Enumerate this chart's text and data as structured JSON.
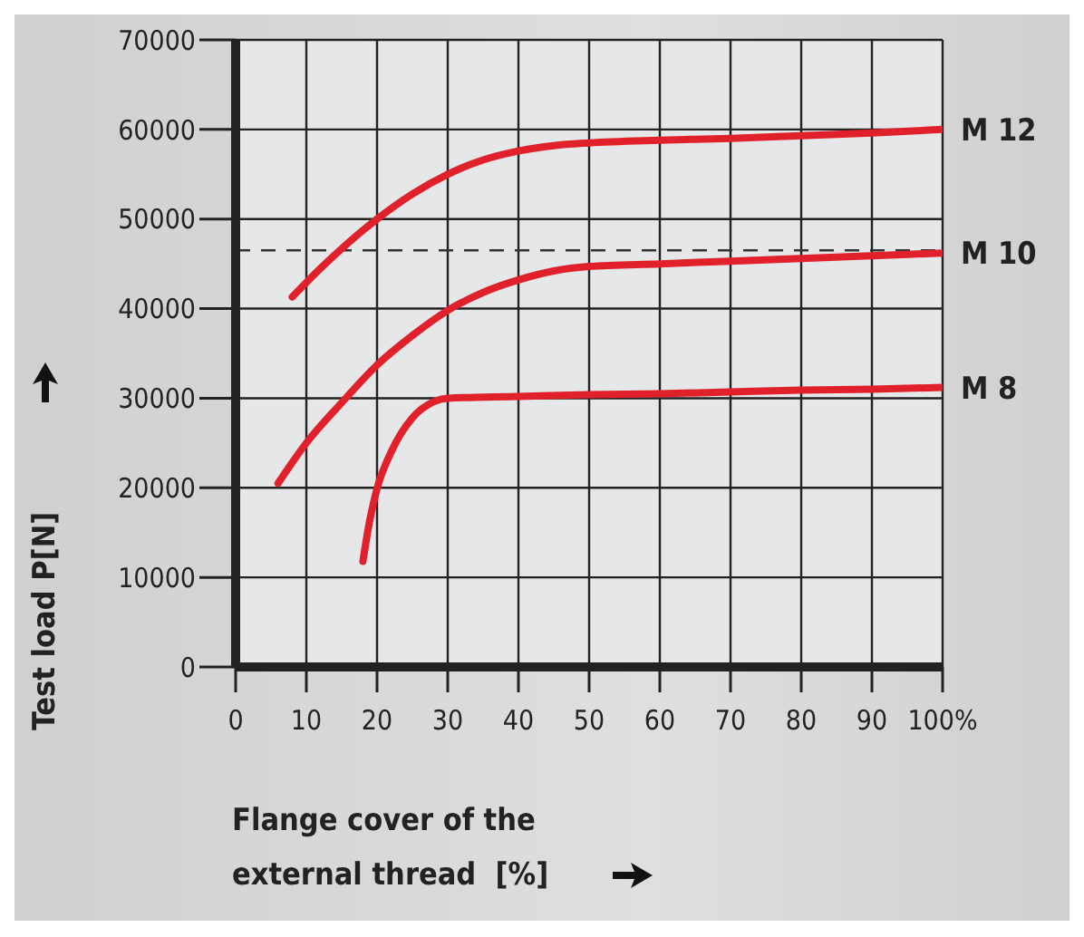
{
  "chart_data": {
    "type": "line",
    "xlabel": "Flange cover of the\nexternal thread  [%]",
    "ylabel": "Test load   P[N]",
    "xlim": [
      0,
      100
    ],
    "xticks": [
      0,
      10,
      20,
      30,
      40,
      50,
      60,
      70,
      80,
      90,
      {
        "value": 100,
        "label": "100%"
      }
    ],
    "ylim": [
      0,
      70000
    ],
    "yticks": [
      0,
      10000,
      20000,
      30000,
      40000,
      50000,
      60000,
      70000
    ],
    "grid": true,
    "legend": false,
    "marker": "none",
    "line_style": "solid",
    "ref_lines": [
      {
        "axis": "y",
        "value": 46500,
        "color": "#333333",
        "line_style": "dashed"
      }
    ],
    "series": [
      {
        "name": "M 12",
        "color": "#e0202a",
        "x": [
          8,
          12,
          16,
          20,
          25,
          30,
          35,
          40,
          45,
          50,
          60,
          70,
          80,
          90,
          100
        ],
        "values": [
          41300,
          44500,
          47400,
          50000,
          52800,
          55000,
          56600,
          57600,
          58200,
          58500,
          58800,
          59000,
          59300,
          59600,
          60000
        ]
      },
      {
        "name": "M 10",
        "color": "#e0202a",
        "x": [
          6,
          10,
          15,
          20,
          25,
          30,
          35,
          40,
          45,
          50,
          60,
          70,
          80,
          90,
          100
        ],
        "values": [
          20500,
          25000,
          29500,
          33700,
          37000,
          39800,
          41800,
          43200,
          44200,
          44700,
          45000,
          45300,
          45600,
          45900,
          46200
        ]
      },
      {
        "name": "M 8",
        "color": "#e0202a",
        "x": [
          18,
          19,
          20,
          22,
          25,
          28,
          30,
          40,
          50,
          60,
          70,
          80,
          90,
          100
        ],
        "values": [
          11800,
          16500,
          19900,
          24000,
          27800,
          29600,
          30000,
          30200,
          30400,
          30500,
          30700,
          30900,
          31000,
          31200
        ]
      }
    ]
  }
}
